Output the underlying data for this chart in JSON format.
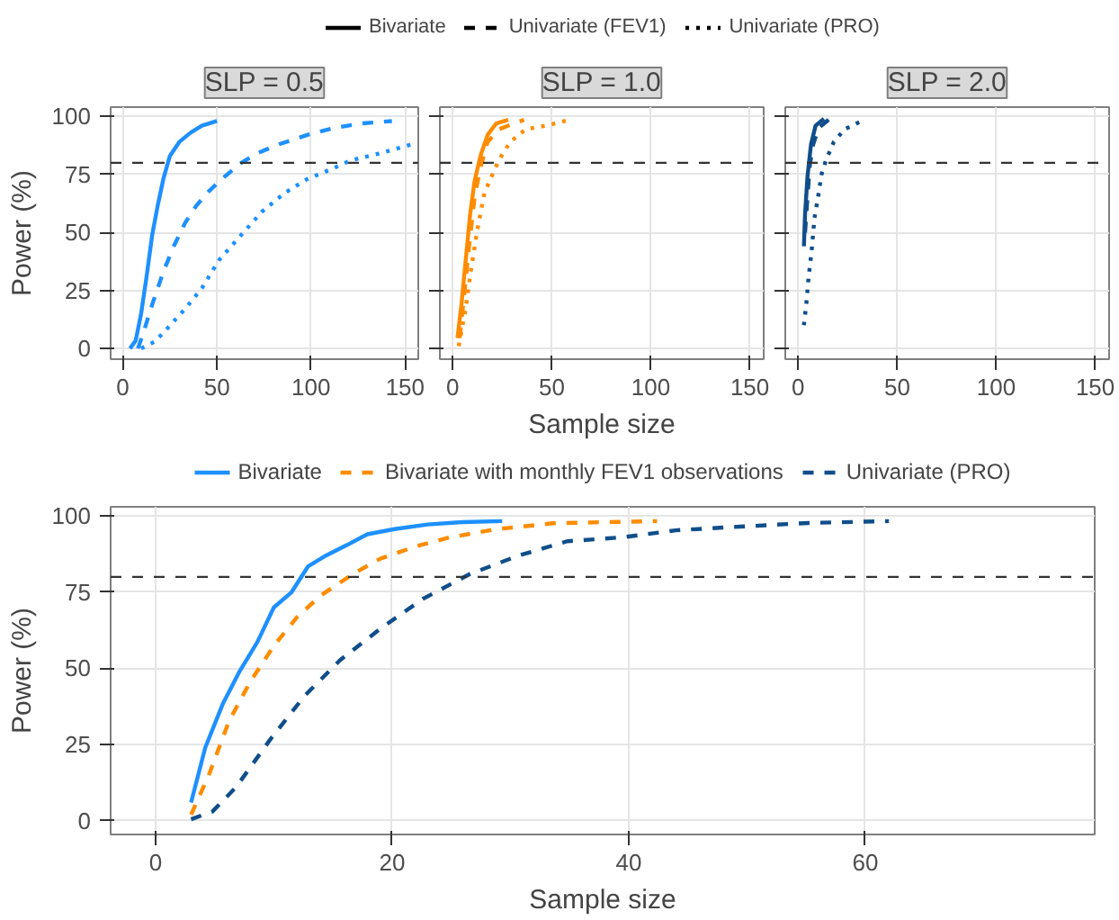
{
  "chart_data": [
    {
      "type": "line",
      "title": "SLP = 0.5",
      "ylabel": "Power (%)",
      "xlim": [
        -6.5,
        157
      ],
      "ylim": [
        -4.6,
        104
      ],
      "xticks": [
        0,
        50,
        100,
        150
      ],
      "yticks": [
        0,
        25,
        50,
        75,
        100
      ],
      "grid": true,
      "legend": "top",
      "ref_lines": [
        {
          "axis": "y",
          "value": 80,
          "color": "#333333",
          "line_style": "dashed"
        }
      ],
      "series": [
        {
          "name": "Bivariate",
          "color": "#1e90ff",
          "line_style": "solid",
          "x": [
            3.8,
            6.8,
            9.7,
            12.6,
            15.6,
            18.5,
            21.5,
            25,
            30,
            36,
            42,
            50
          ],
          "values": [
            0,
            3.4,
            15,
            31,
            49,
            61.5,
            73,
            83,
            89,
            93,
            96,
            98
          ]
        },
        {
          "name": "Univariate (FEV1)",
          "color": "#1e90ff",
          "line_style": "dashed",
          "x": [
            8,
            11,
            15.6,
            21.5,
            27,
            33,
            39,
            46,
            54,
            63,
            71,
            83,
            98,
            112,
            127,
            143
          ],
          "values": [
            0,
            7,
            19,
            33,
            44,
            54,
            61.5,
            68,
            74,
            80,
            84,
            88,
            92,
            95,
            97,
            98
          ]
        },
        {
          "name": "Univariate (PRO)",
          "color": "#1e90ff",
          "line_style": "dotted",
          "x": [
            9.7,
            17,
            24,
            33,
            42,
            51,
            63,
            74,
            86,
            98,
            110,
            121,
            136,
            154
          ],
          "values": [
            0,
            3,
            9,
            17,
            26,
            38,
            49,
            59,
            67,
            73,
            77,
            81,
            84,
            88
          ]
        }
      ]
    },
    {
      "type": "line",
      "title": "SLP = 1.0",
      "xlabel": "Sample size",
      "xlim": [
        -6.5,
        157
      ],
      "ylim": [
        -4.6,
        104
      ],
      "xticks": [
        0,
        50,
        100,
        150
      ],
      "yticks": [
        0,
        25,
        50,
        75,
        100
      ],
      "grid": true,
      "tick_labels": "x",
      "ref_lines": [
        {
          "axis": "y",
          "value": 80,
          "color": "#333333",
          "line_style": "dashed"
        }
      ],
      "series": [
        {
          "color": "#ff8c00",
          "line_style": "solid",
          "x": [
            2.4,
            4.4,
            6.5,
            8.8,
            11,
            14,
            17.6,
            22,
            28
          ],
          "values": [
            4.5,
            19,
            37.6,
            58,
            72,
            83,
            92,
            97,
            98.5
          ]
        },
        {
          "color": "#ff8c00",
          "line_style": "dashed",
          "x": [
            3.5,
            5.9,
            8,
            11,
            14,
            17.6,
            23.5,
            31,
            36
          ],
          "values": [
            4.5,
            24,
            42,
            65,
            78,
            89,
            94.5,
            97,
            98.5
          ]
        },
        {
          "color": "#ff8c00",
          "line_style": "dotted",
          "x": [
            3,
            6.5,
            9.4,
            12.4,
            16,
            20.6,
            23.5,
            29,
            37,
            47,
            59
          ],
          "values": [
            1,
            17,
            35,
            51,
            67,
            76,
            81.5,
            89,
            94.5,
            96,
            98.5
          ]
        }
      ]
    },
    {
      "type": "line",
      "title": "SLP = 2.0",
      "xlim": [
        -6.5,
        157
      ],
      "ylim": [
        -4.6,
        104
      ],
      "xticks": [
        0,
        50,
        100,
        150
      ],
      "yticks": [
        0,
        25,
        50,
        75,
        100
      ],
      "grid": true,
      "tick_labels": "x",
      "ref_lines": [
        {
          "axis": "y",
          "value": 80,
          "color": "#333333",
          "line_style": "dashed"
        }
      ],
      "series": [
        {
          "color": "#104e8b",
          "line_style": "solid",
          "x": [
            2.9,
            3.5,
            4.7,
            6.5,
            8.8,
            13
          ],
          "values": [
            44,
            58,
            74,
            88,
            96,
            99
          ]
        },
        {
          "color": "#104e8b",
          "line_style": "dashed",
          "x": [
            3.5,
            4.7,
            5.9,
            7.6,
            10.3,
            16
          ],
          "values": [
            50,
            65,
            79,
            88,
            95,
            99
          ]
        },
        {
          "color": "#104e8b",
          "line_style": "dotted",
          "x": [
            2.9,
            4.1,
            5.3,
            6.8,
            8.2,
            10,
            11.8,
            14,
            18,
            23.5,
            32
          ],
          "values": [
            10,
            19,
            31,
            42,
            56,
            65,
            75,
            81,
            89,
            94.5,
            98
          ]
        }
      ]
    },
    {
      "type": "line",
      "xlabel": "Sample size",
      "ylabel": "Power (%)",
      "xlim": [
        -3.8,
        79.4
      ],
      "ylim": [
        -4.5,
        103
      ],
      "xticks": [
        0,
        20,
        40,
        60
      ],
      "yticks": [
        0,
        25,
        50,
        75,
        100
      ],
      "grid": true,
      "legend": "top",
      "ref_lines": [
        {
          "axis": "y",
          "value": 80,
          "color": "#333333",
          "line_style": "dashed"
        }
      ],
      "series": [
        {
          "name": "Bivariate",
          "color": "#1e90ff",
          "line_style": "solid",
          "x": [
            3,
            4.2,
            5.7,
            7.1,
            8.6,
            10,
            11.5,
            12.9,
            14.4,
            16.2,
            17.9,
            20.2,
            23,
            26,
            29.3
          ],
          "values": [
            6,
            24,
            38.5,
            49,
            58.6,
            70,
            75,
            83.5,
            87,
            90.5,
            94,
            95.7,
            97.2,
            98,
            98.3
          ]
        },
        {
          "name": "Bivariate with monthly FEV1 observations",
          "color": "#ff8c00",
          "line_style": "dashed",
          "x": [
            3,
            4.5,
            6.2,
            8,
            10,
            12,
            14,
            16.7,
            19,
            22,
            24.9,
            28.9,
            33.6,
            38.3,
            42.4
          ],
          "values": [
            2,
            15,
            32.6,
            45.6,
            57.4,
            67,
            74,
            81,
            86,
            90,
            93,
            95.7,
            97.6,
            98,
            98.3
          ]
        },
        {
          "name": "Univariate (PRO)",
          "color": "#104e8b",
          "line_style": "dashed",
          "x": [
            3,
            4.8,
            6.8,
            9.7,
            12.6,
            15.6,
            19,
            22.6,
            26.6,
            30.7,
            34.8,
            39.5,
            44,
            49.4,
            55.2,
            62
          ],
          "values": [
            0.5,
            3,
            11,
            26.7,
            41,
            52.7,
            63,
            72.8,
            81,
            87,
            91.7,
            93,
            95.3,
            96.5,
            97.7,
            98.3
          ]
        }
      ]
    }
  ]
}
